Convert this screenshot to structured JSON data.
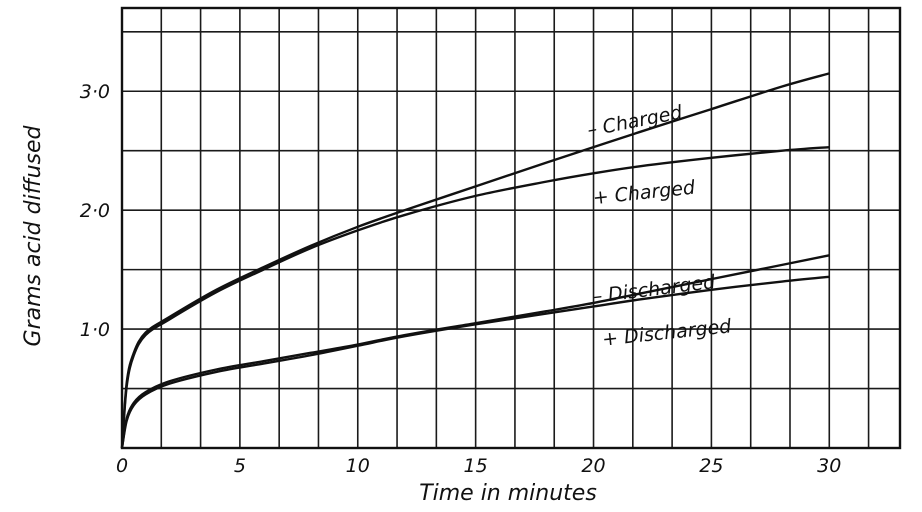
{
  "chart_data": {
    "type": "line",
    "title": "",
    "xlabel": "Time in minutes",
    "ylabel": "Grams acid diffused",
    "xlim": [
      0,
      33
    ],
    "ylim": [
      0,
      3.7
    ],
    "grid": true,
    "x_ticks": [
      {
        "value": 0,
        "label": "0"
      },
      {
        "value": 5,
        "label": "5"
      },
      {
        "value": 10,
        "label": "10"
      },
      {
        "value": 15,
        "label": "15"
      },
      {
        "value": 20,
        "label": "20"
      },
      {
        "value": 25,
        "label": "25"
      },
      {
        "value": 30,
        "label": "30"
      }
    ],
    "y_ticks": [
      {
        "value": 1.0,
        "label": "1·0"
      },
      {
        "value": 2.0,
        "label": "2·0"
      },
      {
        "value": 3.0,
        "label": "3·0"
      }
    ],
    "x_grid_step": 1.6667,
    "y_grid_step": 0.5,
    "series": [
      {
        "name": "– Charged",
        "label_at": {
          "x": 19.8,
          "y": 2.62
        },
        "rotate": -11,
        "x": [
          0,
          0.2,
          0.5,
          1,
          2,
          4,
          6,
          8,
          10,
          12,
          15,
          18,
          20,
          22,
          25,
          28,
          30
        ],
        "y": [
          0,
          0.55,
          0.8,
          0.97,
          1.1,
          1.33,
          1.52,
          1.7,
          1.86,
          2.0,
          2.2,
          2.4,
          2.53,
          2.66,
          2.85,
          3.04,
          3.15
        ]
      },
      {
        "name": "+ Charged",
        "label_at": {
          "x": 20.0,
          "y": 2.05
        },
        "rotate": -6,
        "x": [
          0,
          0.2,
          0.5,
          1,
          2,
          4,
          6,
          8,
          10,
          12,
          15,
          18,
          20,
          22,
          25,
          28,
          30
        ],
        "y": [
          0,
          0.52,
          0.78,
          0.95,
          1.08,
          1.31,
          1.5,
          1.68,
          1.83,
          1.96,
          2.12,
          2.24,
          2.31,
          2.37,
          2.44,
          2.5,
          2.53
        ]
      },
      {
        "name": "– Discharged",
        "label_at": {
          "x": 20.0,
          "y": 1.22
        },
        "rotate": -7,
        "x": [
          0,
          0.2,
          0.5,
          1,
          2,
          4,
          6,
          8,
          10,
          12,
          15,
          18,
          20,
          22,
          25,
          28,
          30
        ],
        "y": [
          0,
          0.25,
          0.38,
          0.47,
          0.56,
          0.66,
          0.73,
          0.8,
          0.87,
          0.95,
          1.05,
          1.15,
          1.22,
          1.3,
          1.42,
          1.54,
          1.62
        ]
      },
      {
        "name": "+ Discharged",
        "label_at": {
          "x": 20.4,
          "y": 0.86
        },
        "rotate": -6,
        "x": [
          0,
          0.2,
          0.5,
          1,
          2,
          4,
          6,
          8,
          10,
          12,
          15,
          18,
          20,
          22,
          25,
          28,
          30
        ],
        "y": [
          0,
          0.23,
          0.36,
          0.45,
          0.54,
          0.64,
          0.71,
          0.78,
          0.86,
          0.94,
          1.04,
          1.13,
          1.19,
          1.25,
          1.33,
          1.4,
          1.44
        ]
      }
    ]
  }
}
